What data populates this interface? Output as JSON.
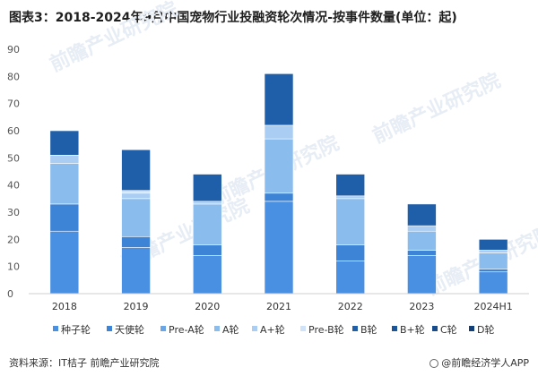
{
  "title": "图表3：2018-2024年9月中国宠物行业投融资轮次情况-按事件数量(单位：起)",
  "source": "资料来源：IT桔子 前瞻产业研究院",
  "app_brand": "@前瞻经济学人APP",
  "watermark": "前瞻产业研究院",
  "colors": {
    "种子轮": "#4a90e2",
    "天使轮": "#3d84d6",
    "Pre-A轮": "#6aa6e6",
    "A轮": "#8bbcee",
    "A+轮": "#a9cdf3",
    "Pre-B轮": "#cfe2f8",
    "B轮": "#1f5fa9",
    "B+轮": "#1a5499",
    "C轮": "#174b8b",
    "D轮": "#123f78"
  },
  "chart_data": {
    "type": "bar",
    "stacked": true,
    "categories": [
      "2018",
      "2019",
      "2020",
      "2021",
      "2022",
      "2023",
      "2024H1"
    ],
    "ylim": [
      0,
      90
    ],
    "yticks": [
      0,
      10,
      20,
      30,
      40,
      50,
      60,
      70,
      80,
      90
    ],
    "grid": false,
    "legend_position": "bottom",
    "series": [
      {
        "name": "种子轮",
        "values": [
          23,
          17,
          14,
          34,
          12,
          14,
          8
        ]
      },
      {
        "name": "天使轮",
        "values": [
          10,
          4,
          4,
          3,
          6,
          2,
          1
        ]
      },
      {
        "name": "Pre-A轮",
        "values": [
          0,
          0,
          0,
          0,
          0,
          0,
          0
        ]
      },
      {
        "name": "A轮",
        "values": [
          15,
          14,
          15,
          20,
          17,
          7,
          6
        ]
      },
      {
        "name": "A+轮",
        "values": [
          3,
          2,
          1,
          5,
          1,
          2,
          1
        ]
      },
      {
        "name": "Pre-B轮",
        "values": [
          0,
          1,
          0,
          0,
          0,
          0,
          0
        ]
      },
      {
        "name": "B轮",
        "values": [
          9,
          15,
          10,
          19,
          8,
          8,
          4
        ]
      },
      {
        "name": "B+轮",
        "values": [
          0,
          0,
          0,
          0,
          0,
          0,
          0
        ]
      },
      {
        "name": "C轮",
        "values": [
          0,
          0,
          0,
          0,
          0,
          0,
          0
        ]
      },
      {
        "name": "D轮",
        "values": [
          0,
          0,
          0,
          0,
          0,
          0,
          0
        ]
      }
    ]
  }
}
